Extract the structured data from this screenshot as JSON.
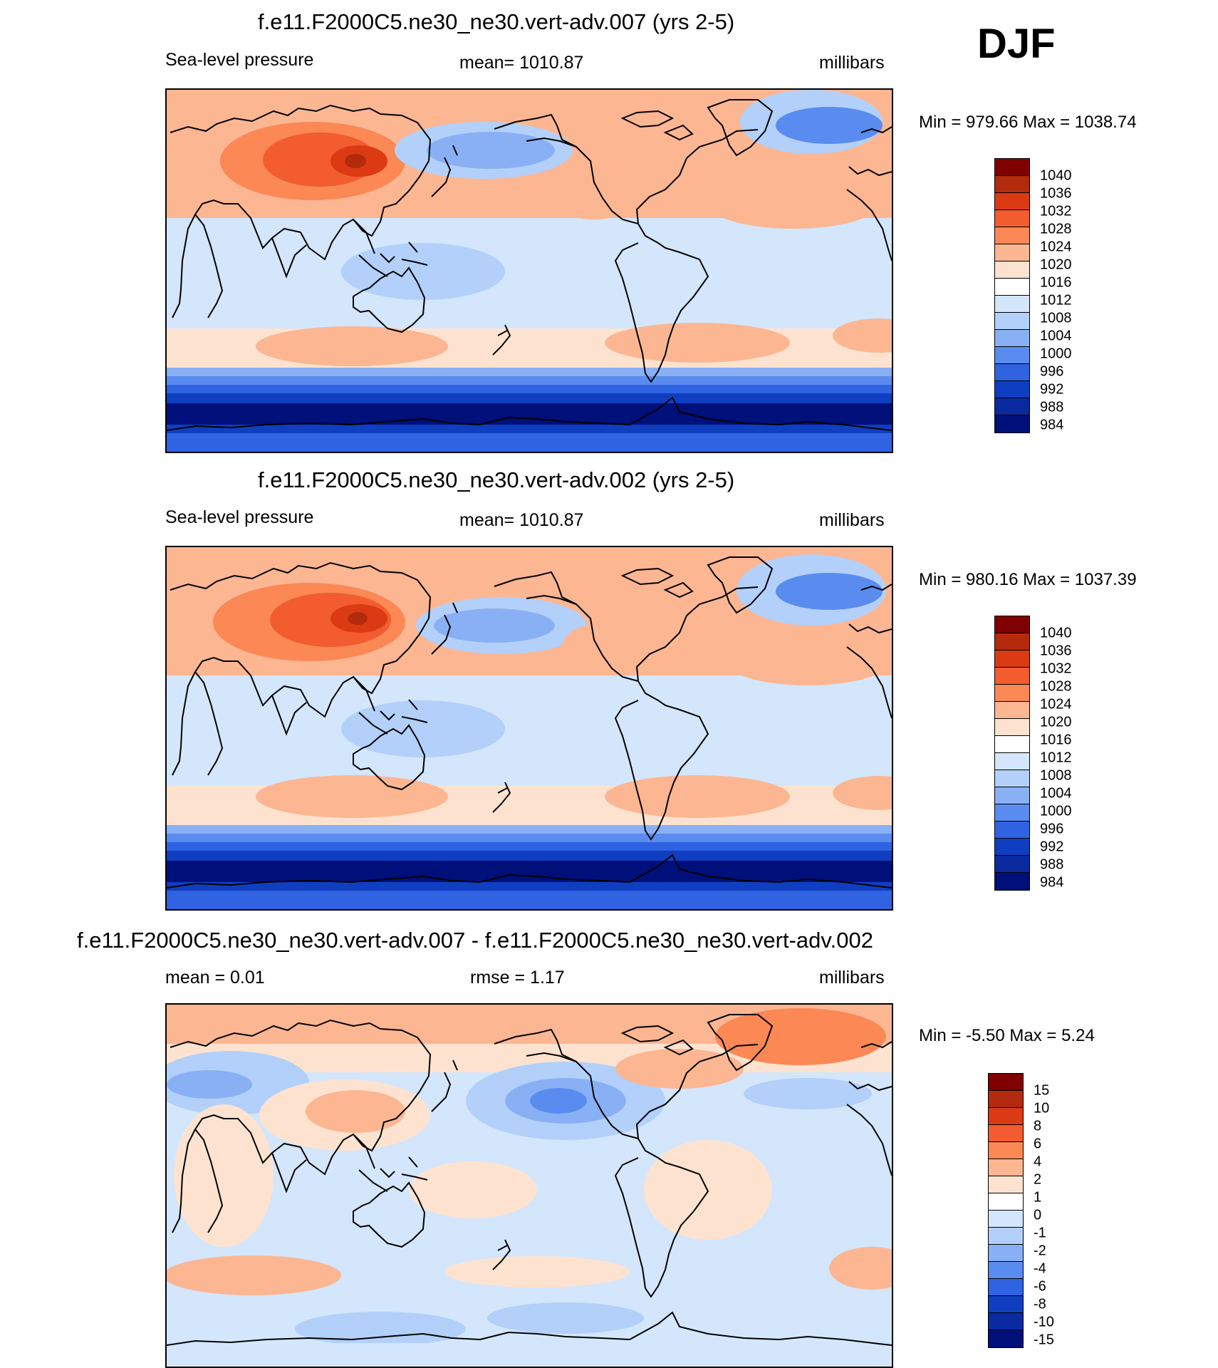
{
  "season": "DJF",
  "panels": [
    {
      "title": "f.e11.F2000C5.ne30_ne30.vert-adv.007 (yrs 2-5)",
      "variable": "Sea-level pressure",
      "stat": "mean= 1010.87",
      "units": "millibars",
      "minmax": "Min = 979.66 Max = 1038.74"
    },
    {
      "title": "f.e11.F2000C5.ne30_ne30.vert-adv.002 (yrs 2-5)",
      "variable": "Sea-level pressure",
      "stat": "mean= 1010.87",
      "units": "millibars",
      "minmax": "Min = 980.16 Max = 1037.39"
    },
    {
      "title": "f.e11.F2000C5.ne30_ne30.vert-adv.007 - f.e11.F2000C5.ne30_ne30.vert-adv.002",
      "mean_stat": "mean =   0.01",
      "rmse_stat": "rmse =   1.17",
      "units": "millibars",
      "minmax": "Min =  -5.50 Max =   5.24"
    }
  ],
  "legend_abs": {
    "labels": [
      "1040",
      "1036",
      "1032",
      "1028",
      "1024",
      "1020",
      "1016",
      "1012",
      "1008",
      "1004",
      "1000",
      "996",
      "992",
      "988",
      "984"
    ],
    "colors": [
      "#800000",
      "#b32a0c",
      "#dc3a12",
      "#f25c2e",
      "#fb8855",
      "#fcb692",
      "#fde3cf",
      "#ffffff",
      "#d3e6fc",
      "#b2d0f9",
      "#89b0f5",
      "#5a8cf0",
      "#2f63e2",
      "#0f3ec1",
      "#0a2aa0",
      "#00107a"
    ]
  },
  "legend_diff": {
    "labels": [
      "15",
      "10",
      "8",
      "6",
      "4",
      "2",
      "1",
      "0",
      "-1",
      "-2",
      "-4",
      "-6",
      "-8",
      "-10",
      "-15"
    ],
    "colors": [
      "#800000",
      "#b32a0c",
      "#dc3a12",
      "#f25c2e",
      "#fb8855",
      "#fcb692",
      "#fde3cf",
      "#ffffff",
      "#d3e6fc",
      "#b2d0f9",
      "#89b0f5",
      "#5a8cf0",
      "#2f63e2",
      "#0f3ec1",
      "#0a2aa0",
      "#00107a"
    ]
  }
}
